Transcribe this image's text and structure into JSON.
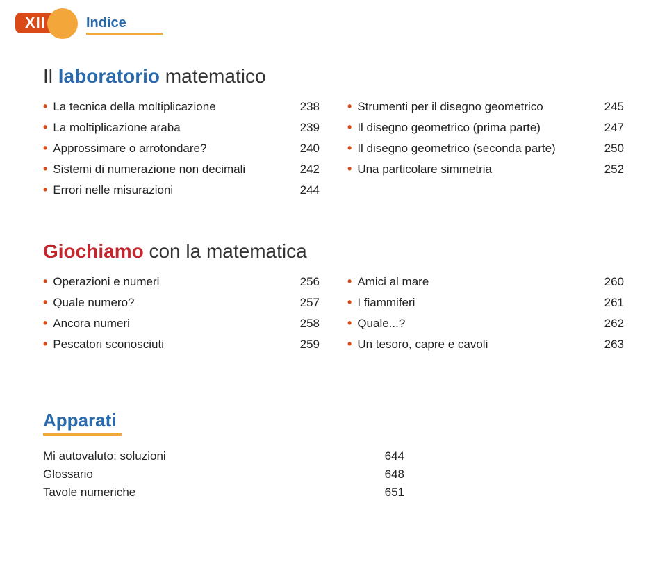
{
  "colors": {
    "orange_tab": "#d94a18",
    "orange_circle": "#f3a63a",
    "underline": "#f1a93a",
    "blue": "#2a6aaa",
    "red": "#c1272d",
    "text": "#222222",
    "background": "#ffffff"
  },
  "header": {
    "roman": "XII",
    "indice": "Indice"
  },
  "lab": {
    "title_prefix": "Il ",
    "title_lead": "laboratorio",
    "title_rest": " matematico",
    "left": [
      {
        "label": "La tecnica della moltiplicazione",
        "page": "238"
      },
      {
        "label": "La moltiplicazione araba",
        "page": "239"
      },
      {
        "label": "Approssimare o arrotondare?",
        "page": "240"
      },
      {
        "label": "Sistemi di numerazione non decimali",
        "page": "242"
      },
      {
        "label": "Errori nelle misurazioni",
        "page": "244"
      }
    ],
    "right": [
      {
        "label": "Strumenti per il disegno geometrico",
        "page": "245"
      },
      {
        "label": "Il disegno geometrico (prima parte)",
        "page": "247"
      },
      {
        "label": "Il disegno geometrico (seconda parte)",
        "page": "250"
      },
      {
        "label": "Una particolare simmetria",
        "page": "252"
      }
    ]
  },
  "gio": {
    "title_lead": "Giochiamo",
    "title_rest": " con la matematica",
    "left": [
      {
        "label": "Operazioni e numeri",
        "page": "256"
      },
      {
        "label": "Quale numero?",
        "page": "257"
      },
      {
        "label": "Ancora numeri",
        "page": "258"
      },
      {
        "label": "Pescatori sconosciuti",
        "page": "259"
      }
    ],
    "right": [
      {
        "label": "Amici al mare",
        "page": "260"
      },
      {
        "label": "I fiammiferi",
        "page": "261"
      },
      {
        "label": "Quale...?",
        "page": "262"
      },
      {
        "label": "Un tesoro, capre e cavoli",
        "page": "263"
      }
    ]
  },
  "apparati": {
    "title": "Apparati",
    "items": [
      {
        "label": "Mi autovaluto: soluzioni",
        "page": "644"
      },
      {
        "label": "Glossario",
        "page": "648"
      },
      {
        "label": "Tavole numeriche",
        "page": "651"
      }
    ]
  }
}
